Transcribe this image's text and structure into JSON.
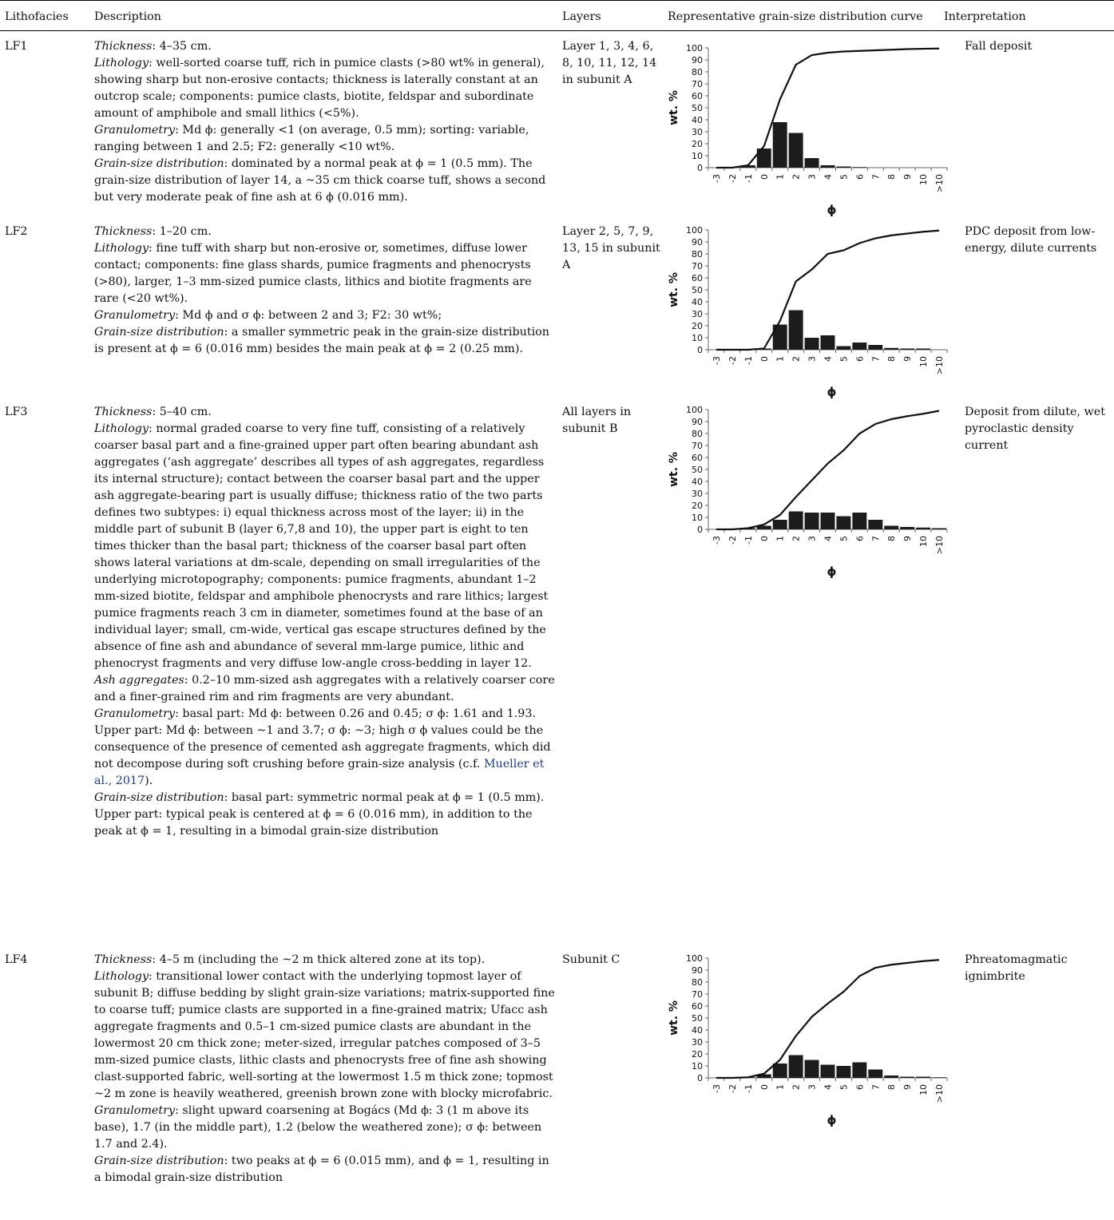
{
  "headers": {
    "lithofacies": "Lithofacies",
    "description": "Description",
    "layers": "Layers",
    "curve": "Representative grain-size distribution curve",
    "interpretation": "Interpretation"
  },
  "rows": [
    {
      "id": "LF1",
      "layers": "Layer 1, 3, 4, 6, 8, 10, 11, 12, 14 in subunit A",
      "interpretation": "Fall deposit",
      "desc": {
        "thickness_label": "Thickness",
        "thickness": ": 4–35 cm.",
        "lithology_label": "Lithology",
        "lithology": ": well-sorted coarse tuff, rich in pumice clasts (>80 wt% in general), showing sharp but non-erosive contacts; thickness is laterally constant at an outcrop scale; components: pumice clasts, biotite, feldspar and subordinate amount of amphibole and small lithics (<5%).",
        "granulometry_label": "Granulometry",
        "granulometry": ": Md ϕ: generally <1 (on average, 0.5 mm); sorting: variable, ranging between 1 and 2.5; F2: generally <10 wt%.",
        "gsd_label": "Grain-size distribution",
        "gsd": ": dominated by a normal peak at ϕ = 1 (0.5 mm). The grain-size distribution of layer 14, a ~35 cm thick coarse tuff, shows a second but very moderate peak of fine ash at 6 ϕ (0.016 mm)."
      }
    },
    {
      "id": "LF2",
      "layers": "Layer 2, 5, 7, 9, 13, 15 in subunit A",
      "interpretation": "PDC deposit from low-energy, dilute currents",
      "desc": {
        "thickness_label": "Thickness",
        "thickness": ": 1–20 cm.",
        "lithology_label": "Lithology",
        "lithology": ": fine tuff with sharp but non-erosive or, sometimes, diffuse lower contact; components: fine glass shards, pumice fragments and phenocrysts (>80), larger, 1–3 mm-sized pumice clasts, lithics and biotite fragments are rare (<20 wt%).",
        "granulometry_label": "Granulometry",
        "granulometry": ": Md ϕ and σ ϕ: between 2 and 3; F2: 30 wt%;",
        "gsd_label": "Grain-size distribution",
        "gsd": ": a smaller symmetric peak in the grain-size distribution is present at ϕ = 6 (0.016 mm) besides the main peak at ϕ = 2 (0.25 mm)."
      }
    },
    {
      "id": "LF3",
      "layers": "All layers in subunit B",
      "interpretation": "Deposit from dilute, wet pyroclastic density current",
      "desc": {
        "thickness_label": "Thickness",
        "thickness": ": 5–40 cm.",
        "lithology_label": "Lithology",
        "lithology": ": normal graded coarse to very fine tuff, consisting of a relatively coarser basal part and a fine-grained upper part often bearing abundant ash aggregates (‘ash aggregate’ describes all types of ash aggregates, regardless its internal structure); contact between the coarser basal part and the upper ash aggregate-bearing part is usually diffuse; thickness ratio of the two parts defines two subtypes: i) equal thickness across most of the layer; ii) in the middle part of subunit B (layer 6,7,8 and 10), the upper part is eight to ten times thicker than the basal part; thickness of the coarser basal part often shows lateral variations at dm-scale, depending on small irregularities of the underlying microtopography; components: pumice fragments, abundant 1–2 mm-sized biotite, feldspar and amphibole phenocrysts and rare lithics; largest pumice fragments reach 3 cm in diameter, sometimes found at the base of an individual layer; small, cm-wide, vertical gas escape structures defined by the absence of fine ash and abundance of several mm-large pumice, lithic and phenocryst fragments and very diffuse low-angle cross-bedding in layer 12.",
        "ash_label": "Ash aggregates",
        "ash": ": 0.2–10 mm-sized ash aggregates with a relatively coarser core and a finer-grained rim and rim fragments are very abundant.",
        "granulometry_label": "Granulometry",
        "granulometry": ": basal part: Md ϕ: between 0.26 and 0.45; σ ϕ: 1.61 and 1.93.",
        "upper": "Upper part: Md ϕ: between ~1 and 3.7; σ ϕ: ~3; high σ ϕ values could be the consequence of the presence of cemented ash aggregate fragments, which did not decompose during soft crushing before grain-size analysis (c.f. ",
        "citation": "Mueller et al., 2017",
        "upper_end": ").",
        "gsd_label": "Grain-size distribution",
        "gsd": ": basal part: symmetric normal peak at ϕ = 1 (0.5 mm).",
        "gsd_upper": "Upper part: typical peak is centered at ϕ = 6 (0.016 mm), in addition to the peak at ϕ = 1, resulting in a bimodal grain-size distribution"
      }
    },
    {
      "id": "LF4",
      "layers": "Subunit C",
      "interpretation": "Phreatomagmatic ignimbrite",
      "desc": {
        "thickness_label": "Thickness",
        "thickness": ": 4–5 m (including the ~2 m thick altered zone at its top).",
        "lithology_label": "Lithology",
        "lithology": ": transitional lower contact with the underlying topmost layer of subunit B; diffuse bedding by slight grain-size variations; matrix-supported fine to coarse tuff; pumice clasts are supported in a fine-grained matrix; Ufacc ash aggregate fragments and 0.5–1 cm-sized pumice clasts are abundant in the lowermost 20 cm thick zone; meter-sized, irregular patches composed of 3–5 mm-sized pumice clasts, lithic clasts and phenocrysts free of fine ash showing clast-supported fabric, well-sorting at the lowermost 1.5 m thick zone; topmost ~2 m zone is heavily weathered, greenish brown zone with blocky microfabric.",
        "granulometry_label": "Granulometry",
        "granulometry": ": slight upward coarsening at Bogács (Md ϕ: 3 (1 m above its base), 1.7 (in the middle part), 1.2 (below the weathered zone); σ ϕ: between 1.7 and 2.4).",
        "gsd_label": "Grain-size distribution",
        "gsd": ": two peaks at ϕ = 6 (0.015 mm), and ϕ = 1, resulting in a bimodal grain-size distribution"
      }
    }
  ],
  "chart_data": [
    {
      "type": "bar",
      "xlabel": "ϕ",
      "ylabel": "wt. %",
      "ylim": [
        0,
        100
      ],
      "yticks": [
        "0",
        "10",
        "20",
        "30",
        "40",
        "50",
        "60",
        "70",
        "80",
        "90",
        "100"
      ],
      "categories": [
        "-3",
        "-2",
        "-1",
        "0",
        "1",
        "2",
        "3",
        "4",
        "5",
        "6",
        "7",
        "8",
        "9",
        "10",
        ">10"
      ],
      "values": [
        0,
        0,
        2,
        16,
        38,
        29,
        8,
        2,
        1,
        0.5,
        0,
        0,
        0,
        0,
        0
      ],
      "cumulative": [
        0,
        0,
        2,
        18,
        57,
        86,
        94,
        96,
        97,
        97.5,
        98,
        98.5,
        99,
        99.3,
        99.5
      ]
    },
    {
      "type": "bar",
      "xlabel": "ϕ",
      "ylabel": "wt. %",
      "ylim": [
        0,
        100
      ],
      "yticks": [
        "0",
        "10",
        "20",
        "30",
        "40",
        "50",
        "60",
        "70",
        "80",
        "90",
        "100"
      ],
      "categories": [
        "-3",
        "-2",
        "-1",
        "0",
        "1",
        "2",
        "3",
        "4",
        "5",
        "6",
        "7",
        "8",
        "9",
        "10",
        ">10"
      ],
      "values": [
        0,
        0,
        0,
        1,
        21,
        33,
        10,
        12,
        3,
        6,
        4,
        1.5,
        1,
        1,
        0
      ],
      "cumulative": [
        0,
        0,
        0,
        1,
        24,
        57,
        67,
        80,
        83,
        89,
        93,
        95.5,
        97,
        98.5,
        99.5
      ]
    },
    {
      "type": "bar",
      "xlabel": "ϕ",
      "ylabel": "wt. %",
      "ylim": [
        0,
        100
      ],
      "yticks": [
        "0",
        "10",
        "20",
        "30",
        "40",
        "50",
        "60",
        "70",
        "80",
        "90",
        "100"
      ],
      "categories": [
        "-3",
        "-2",
        "-1",
        "0",
        "1",
        "2",
        "3",
        "4",
        "5",
        "6",
        "7",
        "8",
        "9",
        "10",
        ">10"
      ],
      "values": [
        0,
        0,
        1,
        3,
        8,
        15,
        14,
        14,
        11,
        14,
        8,
        3,
        2,
        1.5,
        1
      ],
      "cumulative": [
        0,
        0,
        1,
        4,
        12,
        27,
        41,
        55,
        66,
        80,
        88,
        92,
        94.5,
        96.5,
        99
      ]
    },
    {
      "type": "bar",
      "xlabel": "ϕ",
      "ylabel": "wt. %",
      "ylim": [
        0,
        100
      ],
      "yticks": [
        "0",
        "10",
        "20",
        "30",
        "40",
        "50",
        "60",
        "70",
        "80",
        "90",
        "100"
      ],
      "categories": [
        "-3",
        "-2",
        "-1",
        "0",
        "1",
        "2",
        "3",
        "4",
        "5",
        "6",
        "7",
        "8",
        "9",
        "10",
        ">10"
      ],
      "values": [
        0,
        0,
        0.5,
        3,
        12,
        19,
        15,
        11,
        10,
        13,
        7,
        2,
        1,
        1,
        0.5
      ],
      "cumulative": [
        0,
        0,
        0.5,
        3.5,
        15,
        35,
        51,
        62,
        72,
        85,
        92,
        94.5,
        96,
        97.5,
        98.5
      ]
    }
  ]
}
